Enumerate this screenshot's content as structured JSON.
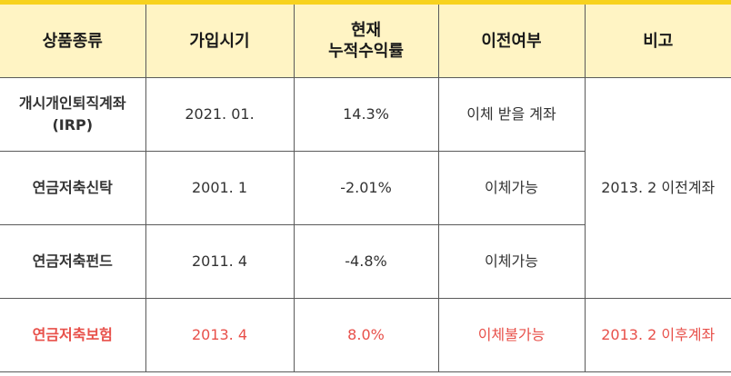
{
  "table": {
    "headers": [
      "상품종류",
      "가입시기",
      "현재",
      "누적수익률",
      "이전여부",
      "비고"
    ],
    "rows": [
      {
        "name_line1": "개시개인퇴직계좌",
        "name_line2": "(IRP)",
        "date": "2021. 01.",
        "return": "14.3%",
        "transfer": "이체 받을 계좌"
      },
      {
        "name": "연금저축신탁",
        "date": "2001. 1",
        "return": "-2.01%",
        "transfer": "이체가능"
      },
      {
        "name": "연금저축펀드",
        "date": "2011. 4",
        "return": "-4.8%",
        "transfer": "이체가능"
      },
      {
        "name": "연금저축보험",
        "date": "2013. 4",
        "return": "8.0%",
        "transfer": "이체불가능",
        "note": "2013. 2 이후계좌"
      }
    ],
    "merged_note": "2013. 2 이전계좌"
  },
  "colors": {
    "accent_bar": "#f7d21e",
    "header_bg": "#fff4c4",
    "highlight_red": "#e8504a"
  }
}
